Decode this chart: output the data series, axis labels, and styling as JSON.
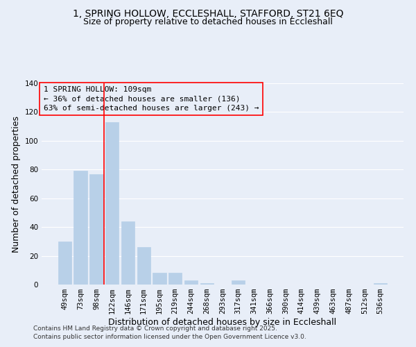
{
  "title": "1, SPRING HOLLOW, ECCLESHALL, STAFFORD, ST21 6EQ",
  "subtitle": "Size of property relative to detached houses in Eccleshall",
  "xlabel": "Distribution of detached houses by size in Eccleshall",
  "ylabel": "Number of detached properties",
  "bar_labels": [
    "49sqm",
    "73sqm",
    "98sqm",
    "122sqm",
    "146sqm",
    "171sqm",
    "195sqm",
    "219sqm",
    "244sqm",
    "268sqm",
    "293sqm",
    "317sqm",
    "341sqm",
    "366sqm",
    "390sqm",
    "414sqm",
    "439sqm",
    "463sqm",
    "487sqm",
    "512sqm",
    "536sqm"
  ],
  "bar_values": [
    30,
    79,
    77,
    113,
    44,
    26,
    8,
    8,
    3,
    1,
    0,
    3,
    0,
    0,
    0,
    0,
    0,
    0,
    0,
    0,
    1
  ],
  "bar_color": "#b8d0e8",
  "bar_edge_color": "#b8d0e8",
  "ylim": [
    0,
    140
  ],
  "yticks": [
    0,
    20,
    40,
    60,
    80,
    100,
    120,
    140
  ],
  "vline_x": 2.5,
  "vline_color": "red",
  "annotation_title": "1 SPRING HOLLOW: 109sqm",
  "annotation_line1": "← 36% of detached houses are smaller (136)",
  "annotation_line2": "63% of semi-detached houses are larger (243) →",
  "footer1": "Contains HM Land Registry data © Crown copyright and database right 2025.",
  "footer2": "Contains public sector information licensed under the Open Government Licence v3.0.",
  "background_color": "#e8eef8",
  "grid_color": "white",
  "title_fontsize": 10,
  "subtitle_fontsize": 9,
  "axis_label_fontsize": 9,
  "tick_fontsize": 7.5,
  "annotation_fontsize": 8,
  "footer_fontsize": 6.5
}
